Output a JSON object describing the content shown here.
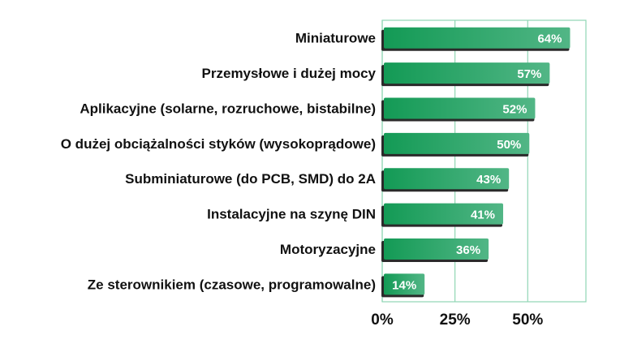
{
  "chart_data": {
    "type": "bar",
    "orientation": "horizontal",
    "title": "",
    "xlabel": "",
    "ylabel": "",
    "categories": [
      "Miniaturowe",
      "Przemysłowe i dużej mocy",
      "Aplikacyjne (solarne, rozruchowe, bistabilne)",
      "O dużej obciążalności styków (wysokoprądowe)",
      "Subminiaturowe (do PCB, SMD) do 2A",
      "Instalacyjne na szynę DIN",
      "Motoryzacyjne",
      "Ze sterownikiem (czasowe, programowalne)"
    ],
    "values": [
      64,
      57,
      52,
      50,
      43,
      41,
      36,
      14
    ],
    "data_labels": [
      "64%",
      "57%",
      "52%",
      "50%",
      "43%",
      "41%",
      "36%",
      "14%"
    ],
    "xticks": [
      0,
      25,
      50
    ],
    "xtick_labels": [
      "0%",
      "25%",
      "50%"
    ],
    "xlim": [
      0,
      70
    ],
    "grid": true,
    "colors": {
      "bar": "#1a9c5a",
      "bar_light": "#4fb587",
      "shadow": "#2a2a2a",
      "grid": "#8fd6b4"
    }
  }
}
